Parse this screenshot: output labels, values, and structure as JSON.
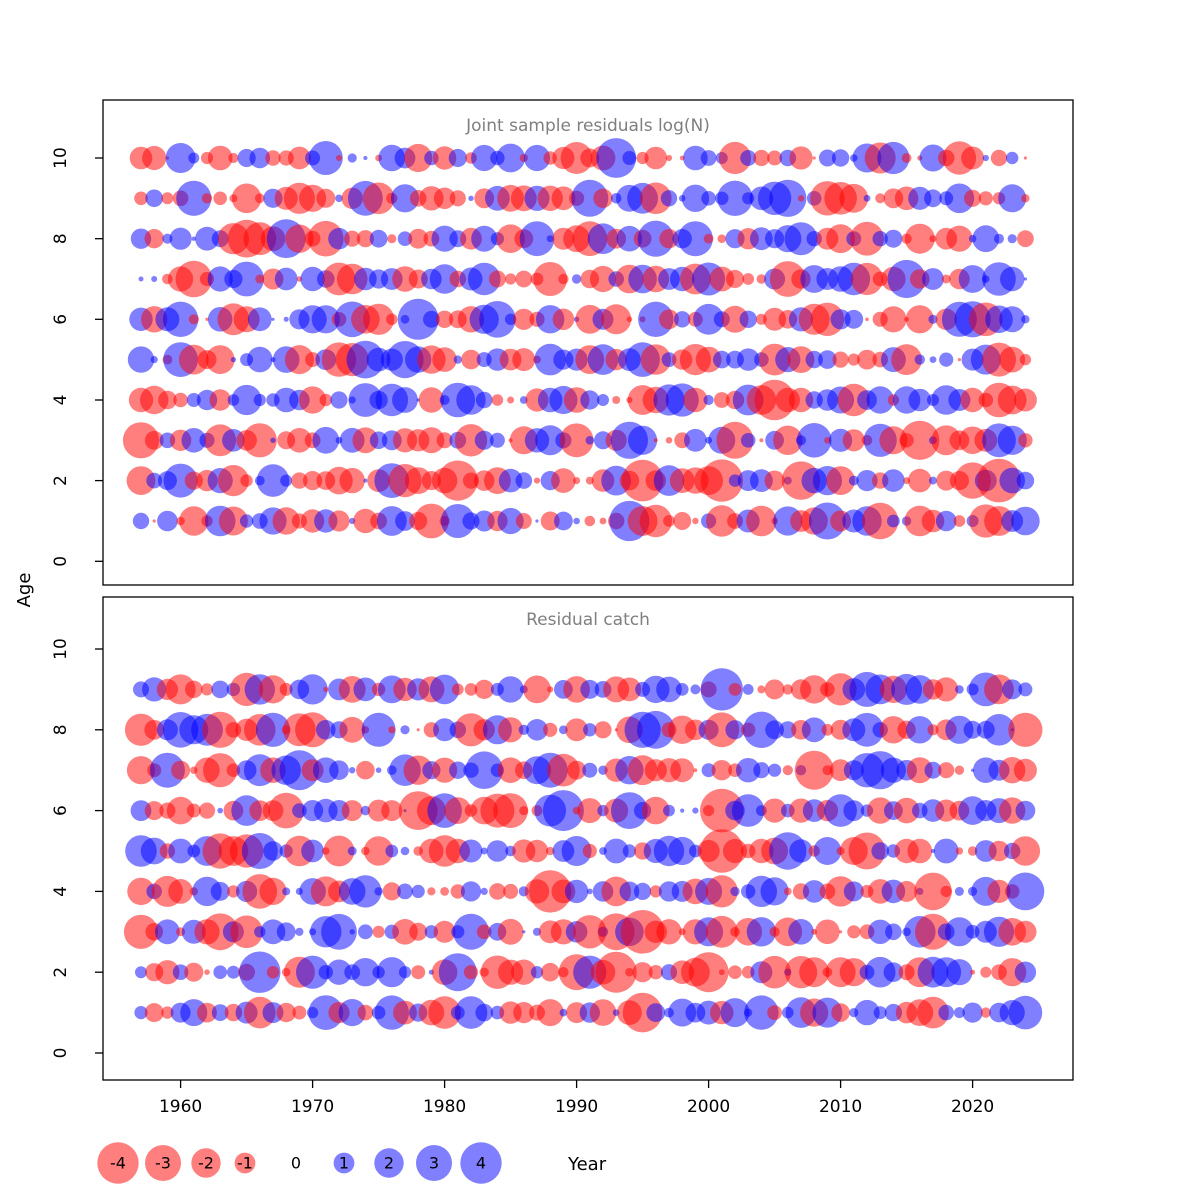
{
  "chart_data": {
    "type": "bubble",
    "xlabel": "Year",
    "ylabel": "Age",
    "x_ticks": [
      1960,
      1970,
      1980,
      1990,
      2000,
      2010,
      2020
    ],
    "value_range": [
      -4,
      4
    ],
    "panels": [
      {
        "title": "Joint sample residuals log(N)",
        "ages": [
          1,
          2,
          3,
          4,
          5,
          6,
          7,
          8,
          9,
          10
        ],
        "y_ticks": [
          0,
          2,
          4,
          6,
          8,
          10
        ],
        "year_start": 1957,
        "year_end": 2024,
        "seed": 11
      },
      {
        "title": "Residual catch",
        "ages": [
          1,
          2,
          3,
          4,
          5,
          6,
          7,
          8,
          9
        ],
        "y_ticks": [
          0,
          2,
          4,
          6,
          8,
          10
        ],
        "year_start": 1957,
        "year_end": 2024,
        "seed": 97
      }
    ],
    "legend": {
      "values": [
        -4,
        -3,
        -2,
        -1,
        0,
        1,
        2,
        3,
        4
      ]
    },
    "colors": {
      "negative": "#ff0000",
      "positive": "#0000ff",
      "bubble_alpha": 0.5,
      "title_color": "#7f7f7f",
      "axis_color": "#000000",
      "background": "#ffffff"
    }
  }
}
